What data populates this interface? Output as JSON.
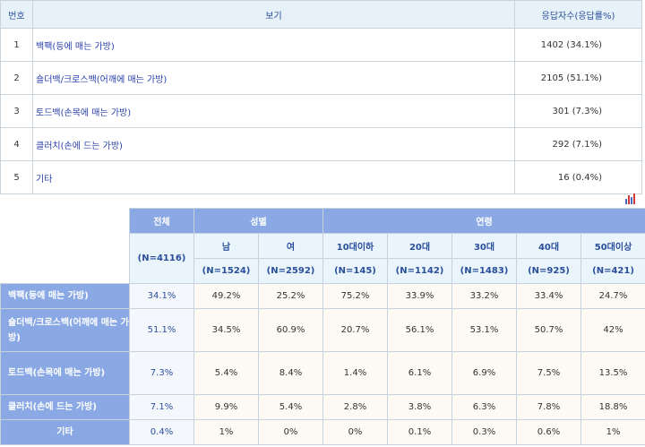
{
  "top_table": {
    "headers": {
      "no": "번호",
      "option": "보기",
      "responses": "응답자수(응답률%)"
    },
    "rows": [
      {
        "no": "1",
        "label": "백팩(등에 매는 가방)",
        "result": "1402 (34.1%)"
      },
      {
        "no": "2",
        "label": "숄더백/크로스백(어깨에 매는 가방)",
        "result": "2105 (51.1%)"
      },
      {
        "no": "3",
        "label": "토드백(손목에 매는 가방)",
        "result": "301 (7.3%)"
      },
      {
        "no": "4",
        "label": "클러치(손에 드는 가방)",
        "result": "292 (7.1%)"
      },
      {
        "no": "5",
        "label": "기타",
        "result": "16 (0.4%)"
      }
    ]
  },
  "cross_table": {
    "total_header": "전체",
    "total_n": "(N=4116)",
    "gender_header": "성별",
    "age_header": "연령",
    "sub_headers": [
      "남",
      "여",
      "10대이하",
      "20대",
      "30대",
      "40대",
      "50대이상"
    ],
    "sub_ns": [
      "(N=1524)",
      "(N=2592)",
      "(N=145)",
      "(N=1142)",
      "(N=1483)",
      "(N=925)",
      "(N=421)"
    ],
    "rows": [
      {
        "label": "백팩(등에 매는 가방)",
        "total": "34.1%",
        "values": [
          "49.2%",
          "25.2%",
          "75.2%",
          "33.9%",
          "33.2%",
          "33.4%",
          "24.7%"
        ]
      },
      {
        "label": "숄더백/크로스백(어깨에 매는 가방)",
        "total": "51.1%",
        "values": [
          "34.5%",
          "60.9%",
          "20.7%",
          "56.1%",
          "53.1%",
          "50.7%",
          "42%"
        ]
      },
      {
        "label": "토드백(손목에 매는 가방)",
        "total": "7.3%",
        "values": [
          "5.4%",
          "8.4%",
          "1.4%",
          "6.1%",
          "6.9%",
          "7.5%",
          "13.5%"
        ]
      },
      {
        "label": "클러치(손에 드는 가방)",
        "total": "7.1%",
        "values": [
          "9.9%",
          "5.4%",
          "2.8%",
          "3.8%",
          "6.3%",
          "7.8%",
          "18.8%"
        ]
      },
      {
        "label": "기타",
        "total": "0.4%",
        "values": [
          "1%",
          "0%",
          "0%",
          "0.1%",
          "0.3%",
          "0.6%",
          "1%"
        ]
      }
    ]
  },
  "icons": {
    "chart": "bar-chart-icon"
  }
}
